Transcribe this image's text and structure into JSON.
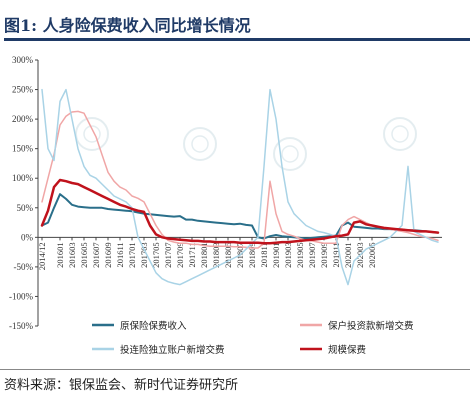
{
  "figure": {
    "title": "图1:    人身险保费收入同比增长情况",
    "source": "资料来源：银保监会、新时代证券研究所"
  },
  "chart_data": {
    "type": "line",
    "ylim": [
      -150,
      300
    ],
    "yticks": [
      300,
      250,
      200,
      150,
      100,
      50,
      0,
      -50,
      -100,
      -150
    ],
    "ytick_labels": [
      "300%",
      "250%",
      "200%",
      "150%",
      "100%",
      "50%",
      "0%",
      "-50%",
      "-100%",
      "-150%"
    ],
    "x_tick_labels": [
      "2014/12",
      "201601",
      "201603",
      "201605",
      "201607",
      "201609",
      "201611",
      "201701",
      "201703",
      "201705",
      "201707",
      "201709",
      "201711",
      "201801",
      "201803",
      "201805",
      "201807",
      "201809",
      "201811",
      "201901",
      "201903",
      "201905",
      "201907",
      "201909",
      "201911",
      "202001",
      "202003",
      "202005"
    ],
    "grid": false,
    "legend_position": "bottom",
    "x_count": 67,
    "series": [
      {
        "name": "原保险保费收入",
        "color": "#2a6f8a",
        "width": 2,
        "values": [
          20,
          25,
          50,
          73,
          65,
          55,
          52,
          51,
          50,
          50,
          50,
          48,
          47,
          46,
          45,
          44,
          42,
          40,
          39,
          38,
          37,
          36,
          35,
          36,
          30,
          30,
          28,
          27,
          26,
          25,
          24,
          23,
          22,
          23,
          21,
          20,
          0,
          -2,
          2,
          4,
          2,
          1,
          0,
          -1,
          -2,
          -1,
          0,
          1,
          2,
          3,
          20,
          25,
          18,
          17,
          16,
          15,
          15,
          14,
          14,
          13,
          13,
          12,
          12,
          11,
          10,
          9,
          8
        ]
      },
      {
        "name": "保户投资款新增交费",
        "color": "#f0a6a6",
        "width": 1.5,
        "values": [
          60,
          100,
          140,
          190,
          205,
          212,
          213,
          210,
          190,
          170,
          140,
          110,
          95,
          85,
          80,
          70,
          66,
          60,
          40,
          20,
          5,
          -5,
          -8,
          -10,
          -10,
          -12,
          -12,
          -14,
          -15,
          -15,
          -15,
          -15,
          -16,
          -16,
          -17,
          -18,
          -18,
          -10,
          95,
          40,
          10,
          5,
          2,
          -2,
          -5,
          -6,
          -8,
          -10,
          -10,
          -10,
          20,
          30,
          35,
          30,
          25,
          20,
          18,
          15,
          14,
          12,
          10,
          8,
          5,
          2,
          0,
          -2,
          -5
        ]
      },
      {
        "name": "投连险独立账户新增交费",
        "color": "#a9d3e6",
        "width": 1.5,
        "values": [
          250,
          150,
          130,
          230,
          250,
          200,
          150,
          120,
          105,
          100,
          90,
          80,
          70,
          65,
          60,
          50,
          0,
          -20,
          -40,
          -60,
          -70,
          -75,
          -78,
          -80,
          -75,
          -70,
          -65,
          -60,
          -55,
          -50,
          -45,
          -40,
          -35,
          -30,
          -20,
          -10,
          0,
          120,
          250,
          200,
          120,
          60,
          40,
          30,
          20,
          15,
          10,
          8,
          5,
          2,
          -50,
          -80,
          -40,
          -30,
          -20,
          -15,
          -10,
          -5,
          0,
          10,
          20,
          120,
          10,
          5,
          0,
          -5,
          -8
        ]
      },
      {
        "name": "规模保费",
        "color": "#c0121c",
        "width": 2.5,
        "values": [
          20,
          45,
          85,
          97,
          95,
          92,
          90,
          85,
          80,
          75,
          70,
          65,
          60,
          55,
          52,
          48,
          45,
          43,
          20,
          5,
          0,
          -2,
          -3,
          -4,
          -5,
          -6,
          -6,
          -7,
          -7,
          -8,
          -8,
          -8,
          -8,
          -9,
          -9,
          -9,
          -9,
          -10,
          -10,
          -9,
          -8,
          -8,
          -7,
          -6,
          -5,
          -4,
          -3,
          -2,
          0,
          2,
          3,
          5,
          25,
          27,
          22,
          20,
          18,
          16,
          15,
          14,
          13,
          12,
          11,
          10,
          10,
          9,
          8
        ]
      }
    ]
  },
  "watermark": "证券研究报告"
}
